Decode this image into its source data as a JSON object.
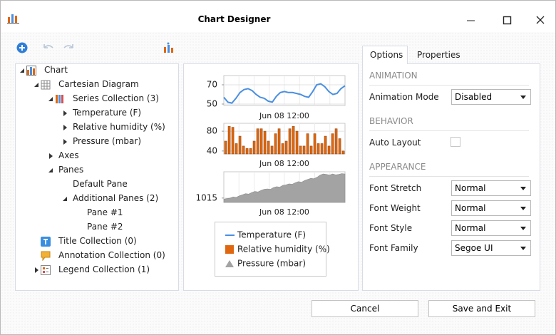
{
  "window": {
    "title": "Chart Designer"
  },
  "tree": [
    {
      "label": "Chart",
      "level": 0,
      "expander": "expanded",
      "icon": "chart"
    },
    {
      "label": "Cartesian Diagram",
      "level": 1,
      "expander": "expanded",
      "icon": "grid"
    },
    {
      "label": "Series Collection (3)",
      "level": 2,
      "expander": "expanded",
      "icon": "series"
    },
    {
      "label": "Temperature (F)",
      "level": 3,
      "expander": "collapsed"
    },
    {
      "label": "Relative humidity (%)",
      "level": 3,
      "expander": "collapsed"
    },
    {
      "label": "Pressure (mbar)",
      "level": 3,
      "expander": "collapsed"
    },
    {
      "label": "Axes",
      "level": 2,
      "expander": "collapsed"
    },
    {
      "label": "Panes",
      "level": 2,
      "expander": "expanded"
    },
    {
      "label": "Default Pane",
      "level": 3
    },
    {
      "label": "Additional Panes (2)",
      "level": 3,
      "expander": "expanded"
    },
    {
      "label": "Pane #1",
      "level": 4
    },
    {
      "label": "Pane #2",
      "level": 4
    },
    {
      "label": "Title Collection (0)",
      "level": 1,
      "icon": "title"
    },
    {
      "label": "Annotation Collection (0)",
      "level": 1,
      "icon": "annotation"
    },
    {
      "label": "Legend Collection (1)",
      "level": 1,
      "expander": "collapsed",
      "icon": "legend"
    }
  ],
  "chart_data": [
    {
      "type": "line",
      "x_tick_label": "Jun 08 12:00",
      "ylim": [
        48.5,
        79.6
      ],
      "yticks": [
        50,
        70
      ],
      "series": [
        {
          "name": "Temperature (F)",
          "color": "#4a8fe0",
          "values": [
            57,
            52,
            51,
            56,
            62,
            65,
            66,
            64,
            60,
            57,
            56,
            53,
            52,
            58,
            62,
            63,
            62,
            62,
            61,
            60,
            58,
            57,
            63,
            70,
            71,
            68,
            63,
            60,
            61,
            66,
            69
          ]
        }
      ]
    },
    {
      "type": "bar",
      "x_tick_label": "Jun 08 12:00",
      "ylim": [
        34,
        96
      ],
      "yticks": [
        40,
        80
      ],
      "series": [
        {
          "name": "Relative humidity (%)",
          "color": "#e0670f",
          "values": [
            60,
            90,
            88,
            55,
            70,
            50,
            45,
            45,
            60,
            85,
            85,
            80,
            60,
            50,
            75,
            85,
            55,
            60,
            85,
            90,
            80,
            50,
            50,
            75,
            50,
            75,
            55,
            55,
            70,
            50,
            75,
            85,
            65,
            40
          ]
        }
      ]
    },
    {
      "type": "area",
      "x_tick_label": "Jun 08 12:00",
      "ylim": [
        1013,
        1027
      ],
      "yticks": [
        1015
      ],
      "series": [
        {
          "name": "Pressure (mbar)",
          "color": "#a3a3a3",
          "values": [
            1014.5,
            1014.8,
            1015,
            1015.5,
            1015.3,
            1016,
            1016.5,
            1017,
            1016.8,
            1017.5,
            1018,
            1017.8,
            1018.5,
            1019,
            1019.2,
            1019,
            1019.8,
            1020.2,
            1020,
            1020.8,
            1021,
            1021.5,
            1021.3,
            1022,
            1022.5,
            1022.2,
            1023,
            1023.5,
            1024,
            1023.8,
            1024.5,
            1025.5,
            1026,
            1025.8,
            1025.5,
            1026,
            1025.6,
            1025.8,
            1026.2,
            1026
          ]
        }
      ]
    }
  ],
  "options": {
    "tabs": [
      {
        "label": "Options",
        "selected": true
      },
      {
        "label": "Properties",
        "selected": false
      }
    ],
    "sections": [
      {
        "title": "ANIMATION",
        "rows": [
          {
            "label": "Animation Mode",
            "value": "Disabled"
          }
        ]
      },
      {
        "title": "BEHAVIOR",
        "rows": [
          {
            "label": "Auto Layout",
            "checked": false
          }
        ]
      },
      {
        "title": "APPEARANCE",
        "rows": [
          {
            "label": "Font Stretch",
            "value": "Normal"
          },
          {
            "label": "Font Weight",
            "value": "Normal"
          },
          {
            "label": "Font Style",
            "value": "Normal"
          },
          {
            "label": "Font Family",
            "value": "Segoe UI"
          }
        ]
      }
    ]
  },
  "buttons": [
    "Cancel",
    "Save and Exit"
  ]
}
